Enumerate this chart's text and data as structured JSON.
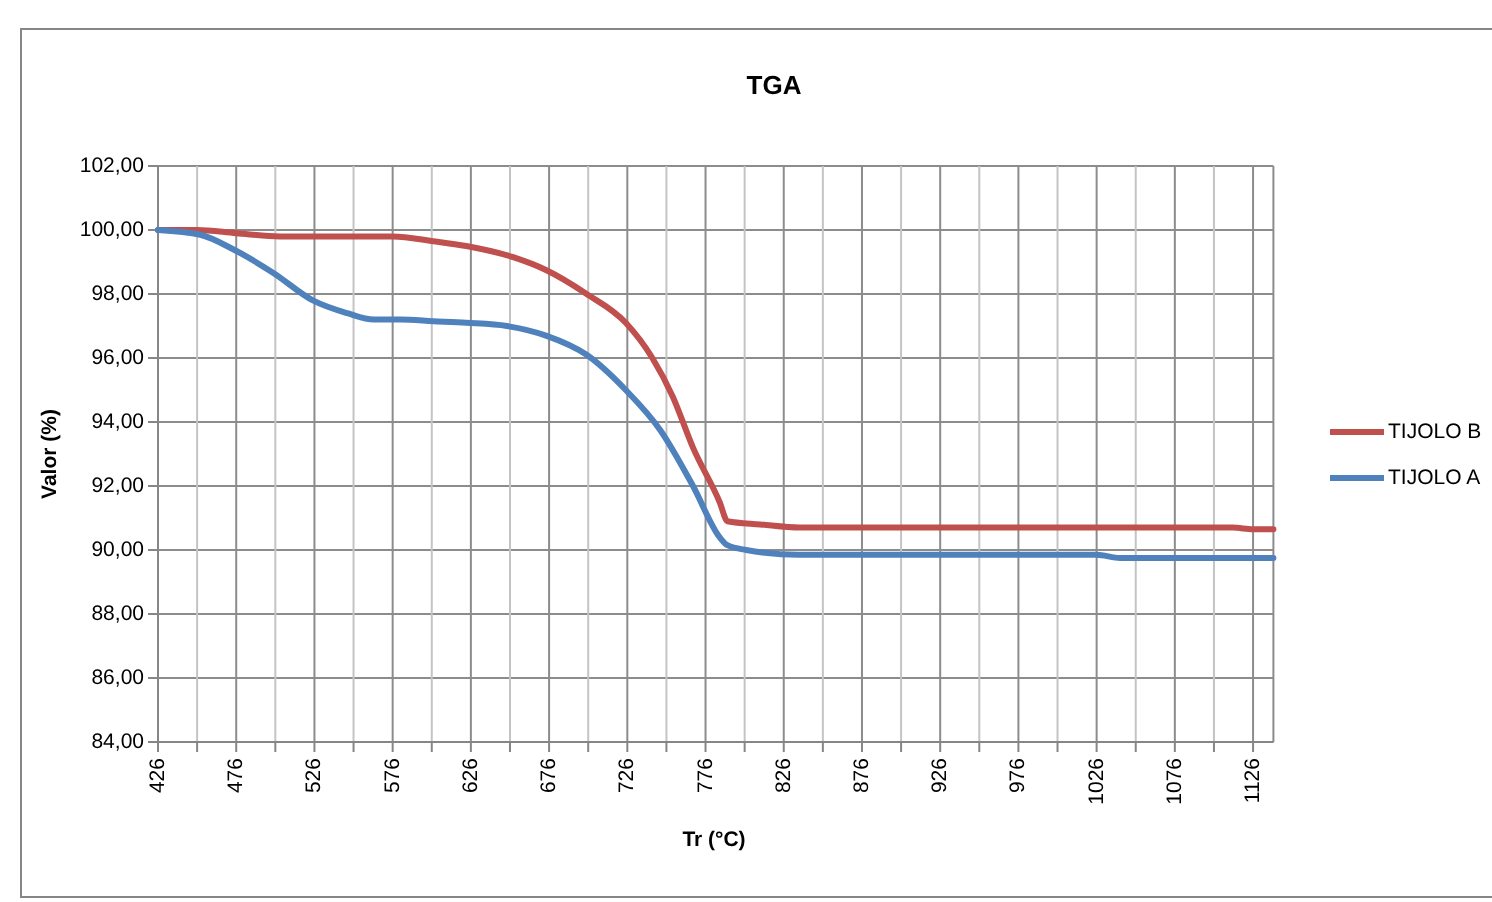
{
  "chart_data": {
    "type": "line",
    "title": "TGA",
    "xlabel": "Tr (°C)",
    "ylabel": "Valor (%)",
    "xlim": [
      426,
      1139
    ],
    "xticks": [
      426,
      {
        "value": 451,
        "label": null
      },
      476,
      {
        "value": 501,
        "label": null
      },
      526,
      {
        "value": 551,
        "label": null
      },
      576,
      {
        "value": 601,
        "label": null
      },
      626,
      {
        "value": 651,
        "label": null
      },
      676,
      {
        "value": 701,
        "label": null
      },
      726,
      {
        "value": 751,
        "label": null
      },
      776,
      {
        "value": 801,
        "label": null
      },
      826,
      {
        "value": 851,
        "label": null
      },
      876,
      {
        "value": 901,
        "label": null
      },
      926,
      {
        "value": 951,
        "label": null
      },
      976,
      {
        "value": 1001,
        "label": null
      },
      1026,
      {
        "value": 1051,
        "label": null
      },
      1076,
      {
        "value": 1101,
        "label": null
      },
      1126
    ],
    "ylim": [
      84,
      102
    ],
    "yticks": [
      {
        "value": 84,
        "label": "84,00"
      },
      {
        "value": 86,
        "label": "86,00"
      },
      {
        "value": 88,
        "label": "88,00"
      },
      {
        "value": 90,
        "label": "90,00"
      },
      {
        "value": 92,
        "label": "92,00"
      },
      {
        "value": 94,
        "label": "94,00"
      },
      {
        "value": 96,
        "label": "96,00"
      },
      {
        "value": 98,
        "label": "98,00"
      },
      {
        "value": 100,
        "label": "100,00"
      },
      {
        "value": 102,
        "label": "102,00"
      }
    ],
    "grid": true,
    "legend": "right",
    "series": [
      {
        "name": "TIJOLO B",
        "color": "#c0504d",
        "x": [
          426,
          451,
          476,
          504,
          551,
          576,
          602,
          623,
          653,
          674,
          700,
          725,
          742,
          755,
          768,
          785,
          790,
          811,
          836,
          1113,
          1126,
          1139
        ],
        "values": [
          100.0,
          100.0,
          99.9,
          99.8,
          99.8,
          99.8,
          99.65,
          99.5,
          99.15,
          98.75,
          98.0,
          97.1,
          96.0,
          94.8,
          93.2,
          91.5,
          90.9,
          90.8,
          90.7,
          90.7,
          90.65,
          90.65
        ]
      },
      {
        "name": "TIJOLO A",
        "color": "#4f81bd",
        "x": [
          426,
          453,
          474,
          500,
          525,
          547,
          564,
          581,
          602,
          623,
          649,
          674,
          700,
          725,
          747,
          768,
          785,
          790,
          802,
          836,
          1026,
          1041,
          1139
        ],
        "values": [
          100.0,
          99.85,
          99.4,
          98.65,
          97.8,
          97.4,
          97.2,
          97.2,
          97.15,
          97.1,
          97.0,
          96.7,
          96.1,
          95.0,
          93.75,
          92.0,
          90.4,
          90.15,
          90.0,
          89.85,
          89.85,
          89.75,
          89.75
        ]
      }
    ]
  }
}
